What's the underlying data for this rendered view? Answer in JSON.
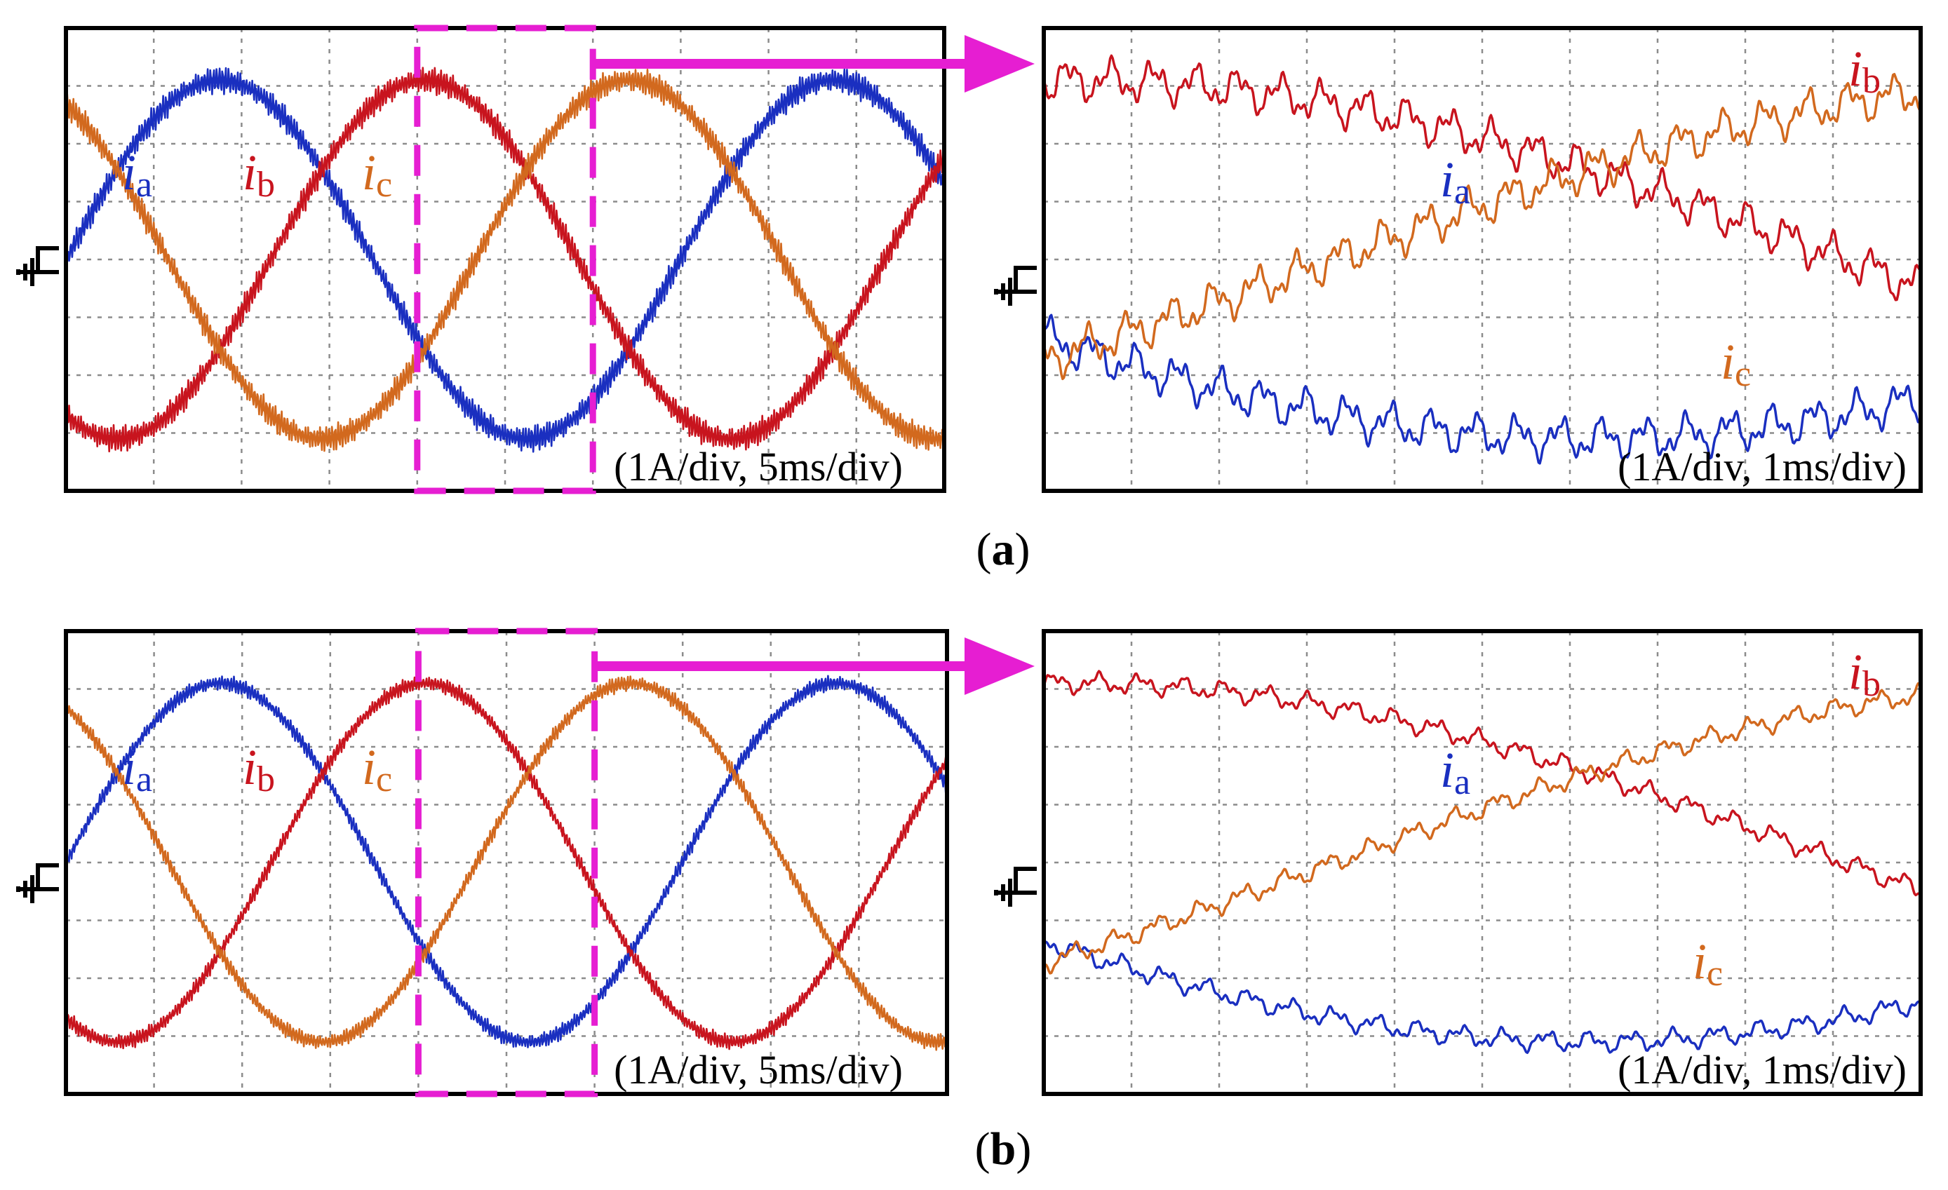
{
  "figure": {
    "colors": {
      "ia": "#1a2fc0",
      "ib": "#c8141e",
      "ic": "#d2691e",
      "zoom": "#e61ed2",
      "grid": "#8c8c8c",
      "frame": "#000000"
    },
    "ground_symbol": "ground-icon"
  },
  "chart_data": [
    {
      "id": "a-overview",
      "type": "line",
      "subfigure": "(a)",
      "view": "overview",
      "scale_label": "(1A/div, 5ms/div)",
      "x_units": "ms",
      "x_per_div": 5,
      "x_range": [
        0,
        50
      ],
      "y_units": "A",
      "y_per_div": 1,
      "y_range": [
        -4,
        4
      ],
      "ground_level": 0,
      "frequency_hz": 28.6,
      "amplitude_a": 3.1,
      "ripple_a": 0.25,
      "zoom_window_ms": [
        20,
        30
      ],
      "series": [
        {
          "key": "ia",
          "name": "i",
          "sub": "a",
          "phase_deg_at_t0": 0
        },
        {
          "key": "ib",
          "name": "i",
          "sub": "b",
          "phase_deg_at_t0": -120
        },
        {
          "key": "ic",
          "name": "i",
          "sub": "c",
          "phase_deg_at_t0": 120
        }
      ]
    },
    {
      "id": "a-zoom",
      "type": "line",
      "subfigure": "(a)",
      "view": "zoom",
      "scale_label": "(1A/div, 1ms/div)",
      "x_units": "ms",
      "x_per_div": 1,
      "x_range": [
        20,
        30
      ],
      "y_units": "A",
      "y_per_div": 1,
      "y_range": [
        -4,
        4
      ],
      "ground_level": 0,
      "frequency_hz": 28.6,
      "amplitude_a": 3.1,
      "ripple_a": 0.45,
      "series": [
        {
          "key": "ia",
          "name": "i",
          "sub": "a",
          "phase_deg_at_t0": 0
        },
        {
          "key": "ib",
          "name": "i",
          "sub": "b",
          "phase_deg_at_t0": -120
        },
        {
          "key": "ic",
          "name": "i",
          "sub": "c",
          "phase_deg_at_t0": 120
        }
      ]
    },
    {
      "id": "b-overview",
      "type": "line",
      "subfigure": "(b)",
      "view": "overview",
      "scale_label": "(1A/div, 5ms/div)",
      "x_units": "ms",
      "x_per_div": 5,
      "x_range": [
        0,
        50
      ],
      "y_units": "A",
      "y_per_div": 1,
      "y_range": [
        -4,
        4
      ],
      "ground_level": 0,
      "frequency_hz": 28.6,
      "amplitude_a": 3.1,
      "ripple_a": 0.15,
      "zoom_window_ms": [
        20,
        30
      ],
      "series": [
        {
          "key": "ia",
          "name": "i",
          "sub": "a",
          "phase_deg_at_t0": 0
        },
        {
          "key": "ib",
          "name": "i",
          "sub": "b",
          "phase_deg_at_t0": -120
        },
        {
          "key": "ic",
          "name": "i",
          "sub": "c",
          "phase_deg_at_t0": 120
        }
      ]
    },
    {
      "id": "b-zoom",
      "type": "line",
      "subfigure": "(b)",
      "view": "zoom",
      "scale_label": "(1A/div, 1ms/div)",
      "x_units": "ms",
      "x_per_div": 1,
      "x_range": [
        20,
        30
      ],
      "y_units": "A",
      "y_per_div": 1,
      "y_range": [
        -4,
        4
      ],
      "ground_level": 0,
      "frequency_hz": 28.6,
      "amplitude_a": 3.1,
      "ripple_a": 0.22,
      "series": [
        {
          "key": "ia",
          "name": "i",
          "sub": "a",
          "phase_deg_at_t0": 0
        },
        {
          "key": "ib",
          "name": "i",
          "sub": "b",
          "phase_deg_at_t0": -120
        },
        {
          "key": "ic",
          "name": "i",
          "sub": "c",
          "phase_deg_at_t0": 120
        }
      ]
    }
  ]
}
